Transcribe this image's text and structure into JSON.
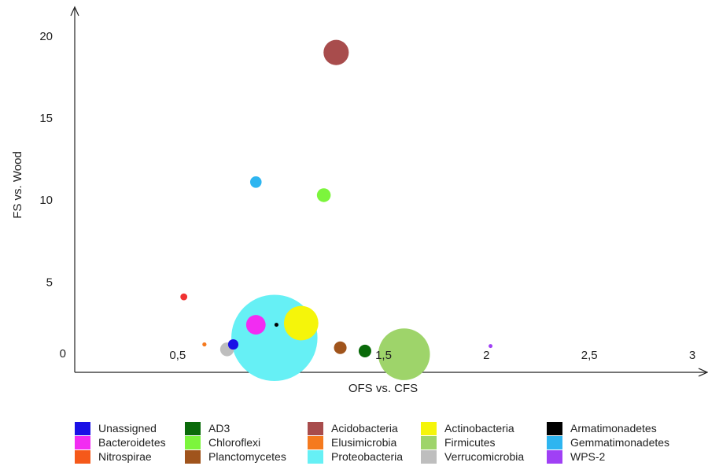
{
  "chart_data": {
    "type": "scatter",
    "variant": "bubble",
    "xlabel": "OFS vs. CFS",
    "ylabel": "FS vs. Wood",
    "xlim": [
      0,
      3
    ],
    "ylim": [
      -0.5,
      21
    ],
    "x_ticks": [
      "0,5",
      "1,5",
      "2",
      "2,5",
      "3"
    ],
    "x_tick_values": [
      0.5,
      1.5,
      2,
      2.5,
      3
    ],
    "y_ticks": [
      "0",
      "5",
      "10",
      "15",
      "20"
    ],
    "y_tick_values": [
      0,
      5,
      10,
      15,
      20
    ],
    "grid": false,
    "legend_position": "bottom",
    "series": [
      {
        "name": "Unassigned",
        "color": "#1a10e6",
        "x": 0.77,
        "y": 1.2,
        "size": 0.9
      },
      {
        "name": "Bacteroidetes",
        "color": "#f22cf2",
        "x": 0.88,
        "y": 2.4,
        "size": 1.7
      },
      {
        "name": "Nitrospirae",
        "color": "#f5591a",
        "x": 0.63,
        "y": 1.2,
        "size": 0.3
      },
      {
        "name": "AD3",
        "color": "#0a6a0a",
        "x": 1.41,
        "y": 0.8,
        "size": 1.1
      },
      {
        "name": "Chloroflexi",
        "color": "#7cf53c",
        "x": 1.21,
        "y": 10.3,
        "size": 1.2
      },
      {
        "name": "Planctomycetes",
        "color": "#a0541c",
        "x": 1.29,
        "y": 1.0,
        "size": 1.1
      },
      {
        "name": "Acidobacteria",
        "color": "#a84c4c",
        "x": 1.27,
        "y": 19.0,
        "size": 2.2
      },
      {
        "name": "Elusimicrobia",
        "color": "#f57a1e",
        "x": 0.63,
        "y": 1.2,
        "size": 0.3
      },
      {
        "name": "Proteobacteria",
        "color": "#66f0f5",
        "x": 0.97,
        "y": 1.6,
        "size": 7.5
      },
      {
        "name": "Actinobacteria",
        "color": "#f5f50a",
        "x": 1.1,
        "y": 2.5,
        "size": 3.0
      },
      {
        "name": "Firmicutes",
        "color": "#9ed46a",
        "x": 1.6,
        "y": 0.6,
        "size": 4.5
      },
      {
        "name": "Verrucomicrobia",
        "color": "#bebebe",
        "x": 0.74,
        "y": 0.9,
        "size": 1.2
      },
      {
        "name": "Armatimonadetes",
        "color": "#000000",
        "x": 0.98,
        "y": 2.4,
        "size": 0.3
      },
      {
        "name": "Gemmatimonadetes",
        "color": "#2eb5f0",
        "x": 0.88,
        "y": 11.1,
        "size": 1.0
      },
      {
        "name": "WPS-2",
        "color": "#a040f5",
        "x": 2.02,
        "y": 1.1,
        "size": 0.3
      },
      {
        "name": "",
        "color": "#f03232",
        "x": 0.53,
        "y": 4.1,
        "size": 0.6
      }
    ]
  },
  "legend": {
    "columns": [
      [
        "Unassigned",
        "Bacteroidetes",
        "Nitrospirae"
      ],
      [
        "AD3",
        "Chloroflexi",
        "Planctomycetes"
      ],
      [
        "Acidobacteria",
        "Elusimicrobia",
        "Proteobacteria"
      ],
      [
        "Actinobacteria",
        "Firmicutes",
        "Verrucomicrobia"
      ],
      [
        "Armatimonadetes",
        "Gemmatimonadetes",
        "WPS-2"
      ]
    ]
  }
}
